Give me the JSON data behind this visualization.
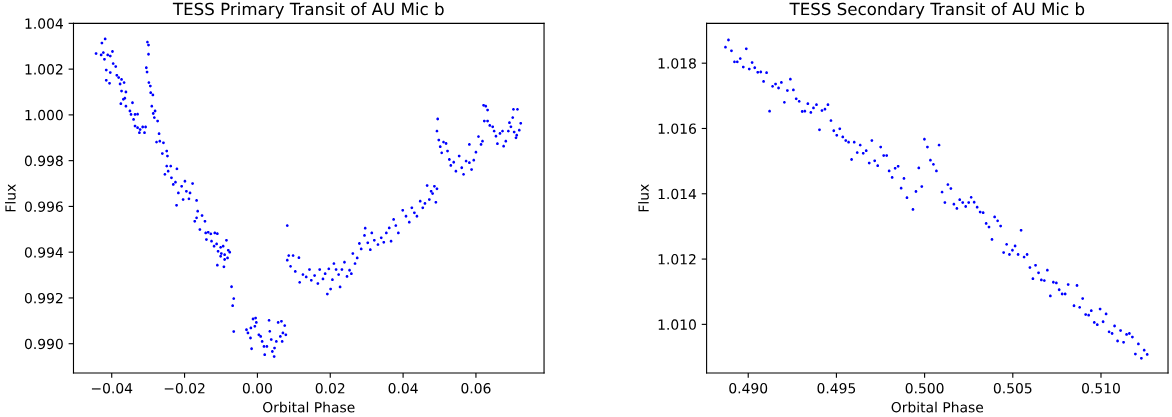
{
  "chart_data": [
    {
      "type": "scatter",
      "title": "TESS Primary Transit of AU Mic b",
      "xlabel": "Orbital Phase",
      "ylabel": "Flux",
      "grid": false,
      "legend": false,
      "xlim": [
        -0.0505,
        0.0787
      ],
      "ylim": [
        0.98872,
        1.004
      ],
      "xticks": [
        {
          "value": -0.04,
          "label": "−0.04"
        },
        {
          "value": -0.02,
          "label": "−0.02"
        },
        {
          "value": 0.0,
          "label": "0.00"
        },
        {
          "value": 0.02,
          "label": "0.02"
        },
        {
          "value": 0.04,
          "label": "0.04"
        },
        {
          "value": 0.06,
          "label": "0.06"
        }
      ],
      "yticks": [
        {
          "value": 0.99,
          "label": "0.990"
        },
        {
          "value": 0.992,
          "label": "0.992"
        },
        {
          "value": 0.994,
          "label": "0.994"
        },
        {
          "value": 0.996,
          "label": "0.996"
        },
        {
          "value": 0.998,
          "label": "0.998"
        },
        {
          "value": 1.0,
          "label": "1.000"
        },
        {
          "value": 1.002,
          "label": "1.002"
        },
        {
          "value": 1.004,
          "label": "1.004"
        }
      ],
      "series": [
        {
          "color": "#0000ff",
          "x": [
            -0.0443,
            -0.0427,
            -0.0418,
            -0.0429,
            -0.0423,
            -0.042,
            -0.0411,
            -0.0404,
            -0.0398,
            -0.0396,
            -0.0415,
            -0.0404,
            -0.0415,
            -0.0406,
            -0.0389,
            -0.0386,
            -0.0381,
            -0.0373,
            -0.0366,
            -0.0377,
            -0.0373,
            -0.0361,
            -0.0368,
            -0.0364,
            -0.0375,
            -0.0361,
            -0.035,
            -0.0343,
            -0.0347,
            -0.0336,
            -0.0329,
            -0.034,
            -0.0336,
            -0.0329,
            -0.0322,
            -0.0315,
            -0.0324,
            -0.031,
            -0.0307,
            -0.0302,
            -0.0299,
            -0.0299,
            -0.0305,
            -0.0303,
            -0.0298,
            -0.0294,
            -0.0293,
            -0.0287,
            -0.029,
            -0.0286,
            -0.0281,
            -0.0283,
            -0.0274,
            -0.027,
            -0.0277,
            -0.0268,
            -0.0258,
            -0.0261,
            -0.0249,
            -0.0247,
            -0.0249,
            -0.0238,
            -0.0245,
            -0.0221,
            -0.0254,
            -0.0236,
            -0.0231,
            -0.0225,
            -0.0217,
            -0.0208,
            -0.0199,
            -0.0195,
            -0.0185,
            -0.0178,
            -0.0204,
            -0.0222,
            -0.0188,
            -0.0167,
            -0.0164,
            -0.0167,
            -0.0172,
            -0.0158,
            -0.0152,
            -0.0144,
            -0.0142,
            -0.0135,
            -0.014,
            -0.0128,
            -0.0117,
            -0.011,
            -0.0126,
            -0.0119,
            -0.0112,
            -0.0108,
            -0.0101,
            -0.0094,
            -0.0085,
            -0.0099,
            -0.009,
            -0.008,
            -0.0076,
            -0.0082,
            -0.009,
            -0.011,
            -0.0092,
            -0.0101,
            -0.0071,
            -0.0065,
            -0.0068,
            -0.0065,
            -0.003,
            -0.0026,
            -0.0018,
            -0.0012,
            -0.0005,
            -0.0003,
            -0.0007,
            -0.0016,
            -0.0019,
            0.0004,
            0.0009,
            0.0013,
            0.0018,
            0.002,
            0.0026,
            0.0032,
            0.0034,
            0.0038,
            0.0041,
            0.0046,
            0.0047,
            0.0052,
            0.0057,
            0.0063,
            0.0066,
            0.007,
            0.0075,
            0.0078,
            0.0068,
            0.0082,
            0.0082,
            0.0086,
            0.0098,
            0.0091,
            0.0114,
            0.0104,
            0.0116,
            0.0125,
            0.0134,
            0.0143,
            0.0148,
            0.0157,
            0.0166,
            0.0171,
            0.018,
            0.0186,
            0.0192,
            0.0196,
            0.0201,
            0.0206,
            0.021,
            0.0216,
            0.0223,
            0.0227,
            0.0232,
            0.0239,
            0.0246,
            0.0253,
            0.0258,
            0.0262,
            0.0268,
            0.0274,
            0.028,
            0.0285,
            0.0296,
            0.0294,
            0.0303,
            0.0314,
            0.031,
            0.0321,
            0.0331,
            0.034,
            0.0347,
            0.0354,
            0.0362,
            0.0367,
            0.0374,
            0.038,
            0.0387,
            0.0399,
            0.0408,
            0.0417,
            0.0424,
            0.0431,
            0.0438,
            0.0447,
            0.0454,
            0.046,
            0.0466,
            0.0472,
            0.0477,
            0.0481,
            0.0486,
            0.049,
            0.0493,
            0.0495,
            0.0493,
            0.0498,
            0.0502,
            0.0506,
            0.0511,
            0.0518,
            0.0522,
            0.0527,
            0.0531,
            0.0539,
            0.0545,
            0.0554,
            0.0561,
            0.0566,
            0.0573,
            0.0582,
            0.0582,
            0.0588,
            0.0594,
            0.06,
            0.0607,
            0.0614,
            0.0618,
            0.0621,
            0.0627,
            0.0632,
            0.0623,
            0.0632,
            0.0638,
            0.0646,
            0.065,
            0.0655,
            0.0659,
            0.0666,
            0.0673,
            0.0676,
            0.0682,
            0.0689,
            0.0692,
            0.0696,
            0.0701,
            0.0705,
            0.071,
            0.0714,
            0.0703,
            0.0719,
            0.0723,
            0.0712
          ],
          "values": [
            1.00268,
            1.00314,
            1.00332,
            1.00262,
            1.00272,
            1.00243,
            1.00262,
            1.00257,
            1.00277,
            1.00224,
            1.00196,
            1.00185,
            1.00151,
            1.00138,
            1.00211,
            1.00173,
            1.00163,
            1.00155,
            1.00141,
            1.00135,
            1.00104,
            1.001,
            1.00068,
            1.00073,
            1.00049,
            1.00038,
            1.00017,
            1.00053,
            1.00002,
            1.00002,
            1.00003,
            0.9998,
            0.99951,
            0.99944,
            0.99936,
            0.99947,
            0.99922,
            0.99922,
            0.99947,
            1.00318,
            1.00305,
            1.00265,
            1.00206,
            1.00187,
            1.00141,
            1.00126,
            1.00097,
            1.00087,
            1.00038,
            1.00006,
            1.00017,
            0.99988,
            0.99973,
            0.99918,
            0.99881,
            0.99885,
            0.99878,
            0.99831,
            0.99842,
            0.9982,
            0.99776,
            0.99776,
            0.99754,
            0.99764,
            0.9974,
            0.99725,
            0.99696,
            0.99706,
            0.99659,
            0.99688,
            0.9971,
            0.99666,
            0.99659,
            0.997,
            0.9963,
            0.99605,
            0.99633,
            0.99626,
            0.99579,
            0.9955,
            0.99535,
            0.99499,
            0.9956,
            0.99535,
            0.99484,
            0.99487,
            0.99455,
            0.9948,
            0.99484,
            0.99481,
            0.99448,
            0.99426,
            0.99436,
            0.99404,
            0.99421,
            0.99426,
            0.99452,
            0.99394,
            0.99389,
            0.99408,
            0.994,
            0.99375,
            0.99368,
            0.99343,
            0.99336,
            0.99382,
            0.99249,
            0.99197,
            0.99166,
            0.99053,
            0.99061,
            0.99047,
            0.99069,
            0.99108,
            0.99112,
            0.99093,
            0.99076,
            0.98978,
            0.99025,
            0.99039,
            0.99032,
            0.9901,
            0.98988,
            0.98952,
            0.98988,
            0.99102,
            0.99054,
            0.99018,
            0.98966,
            0.98944,
            0.98981,
            0.9901,
            0.99093,
            0.99032,
            0.99098,
            0.99047,
            0.99079,
            0.99039,
            0.9901,
            0.99516,
            0.99365,
            0.99385,
            0.99385,
            0.99338,
            0.99376,
            0.99316,
            0.99268,
            0.99302,
            0.99292,
            0.99324,
            0.99277,
            0.99298,
            0.99263,
            0.99324,
            0.99283,
            0.99306,
            0.99217,
            0.99327,
            0.99239,
            0.9928,
            0.9935,
            0.99324,
            0.99302,
            0.99248,
            0.99324,
            0.99356,
            0.99294,
            0.99321,
            0.99306,
            0.99394,
            0.9935,
            0.99375,
            0.99438,
            0.99414,
            0.99505,
            0.99473,
            0.99441,
            0.99484,
            0.99411,
            0.99452,
            0.99433,
            0.99463,
            0.99443,
            0.99484,
            0.99506,
            0.99448,
            0.99543,
            0.99516,
            0.99484,
            0.99583,
            0.99557,
            0.99531,
            0.99594,
            0.99572,
            0.99557,
            0.99623,
            0.99594,
            0.99613,
            0.99691,
            0.9963,
            0.99666,
            0.99656,
            0.99688,
            0.99618,
            0.99677,
            0.99982,
            0.99929,
            0.9989,
            0.99861,
            0.99834,
            0.99881,
            0.99875,
            0.99842,
            0.99805,
            0.99779,
            0.99793,
            0.99754,
            0.9982,
            0.99769,
            0.9974,
            0.99798,
            0.99871,
            0.99791,
            0.99761,
            0.99802,
            0.99837,
            0.99905,
            0.99871,
            0.99885,
            1.00042,
            1.00038,
            1.00021,
            0.99973,
            0.99973,
            0.99954,
            0.99948,
            0.99929,
            0.99907,
            0.99874,
            0.99919,
            0.99929,
            0.99863,
            0.99885,
            0.99929,
            0.99966,
            0.99948,
            0.99988,
            0.99925,
            0.999,
            1.00024,
            1.00024,
            0.99933,
            0.99963,
            0.99911
          ]
        }
      ]
    },
    {
      "type": "scatter",
      "title": "TESS Secondary Transit of AU Mic b",
      "xlabel": "Orbital Phase",
      "ylabel": "Flux",
      "grid": false,
      "legend": false,
      "xlim": [
        0.48764,
        0.5138
      ],
      "ylim": [
        1.00851,
        1.01922
      ],
      "xticks": [
        {
          "value": 0.49,
          "label": "0.490"
        },
        {
          "value": 0.495,
          "label": "0.495"
        },
        {
          "value": 0.5,
          "label": "0.500"
        },
        {
          "value": 0.505,
          "label": "0.505"
        },
        {
          "value": 0.51,
          "label": "0.510"
        }
      ],
      "yticks": [
        {
          "value": 1.01,
          "label": "1.010"
        },
        {
          "value": 1.012,
          "label": "1.012"
        },
        {
          "value": 1.014,
          "label": "1.014"
        },
        {
          "value": 1.016,
          "label": "1.016"
        },
        {
          "value": 1.018,
          "label": "1.018"
        }
      ],
      "series": [
        {
          "color": "#0000ff",
          "x": [
            0.48871,
            0.48888,
            0.48905,
            0.48922,
            0.48938,
            0.48955,
            0.48972,
            0.48989,
            0.49006,
            0.49022,
            0.49037,
            0.49054,
            0.49071,
            0.49087,
            0.49104,
            0.49121,
            0.49138,
            0.49155,
            0.49172,
            0.49188,
            0.49205,
            0.49222,
            0.49239,
            0.49256,
            0.49272,
            0.49289,
            0.49306,
            0.49321,
            0.49338,
            0.49355,
            0.4937,
            0.49387,
            0.49404,
            0.49418,
            0.49435,
            0.49452,
            0.49469,
            0.49485,
            0.49502,
            0.49519,
            0.49536,
            0.49553,
            0.49569,
            0.49586,
            0.49601,
            0.49618,
            0.49635,
            0.49652,
            0.49669,
            0.49686,
            0.49701,
            0.49717,
            0.49734,
            0.49751,
            0.49768,
            0.49785,
            0.49799,
            0.49816,
            0.49833,
            0.4985,
            0.49867,
            0.49883,
            0.499,
            0.49934,
            0.49951,
            0.49967,
            0.49984,
            0.49999,
            0.50016,
            0.50033,
            0.5005,
            0.50067,
            0.50082,
            0.50099,
            0.50115,
            0.50132,
            0.50149,
            0.50166,
            0.50183,
            0.50199,
            0.50216,
            0.50233,
            0.5025,
            0.50264,
            0.50281,
            0.50298,
            0.50315,
            0.50332,
            0.50349,
            0.50365,
            0.50382,
            0.50397,
            0.50414,
            0.50431,
            0.50448,
            0.50465,
            0.50481,
            0.50498,
            0.50513,
            0.5053,
            0.50547,
            0.50564,
            0.50581,
            0.50597,
            0.50614,
            0.50629,
            0.50646,
            0.50662,
            0.50679,
            0.50696,
            0.50713,
            0.5073,
            0.50747,
            0.50763,
            0.5078,
            0.50797,
            0.50814,
            0.50847,
            0.50864,
            0.50879,
            0.50896,
            0.50913,
            0.5093,
            0.50945,
            0.50962,
            0.50979,
            0.50995,
            0.51012,
            0.51029,
            0.51046,
            0.51063,
            0.51077,
            0.51094,
            0.51111,
            0.51128,
            0.51145,
            0.51161,
            0.51178,
            0.51195,
            0.51212,
            0.51229,
            0.51245,
            0.51262
          ],
          "values": [
            1.01849,
            1.01871,
            1.01838,
            1.01804,
            1.01804,
            1.01814,
            1.01788,
            1.01844,
            1.01782,
            1.01802,
            1.01786,
            1.01772,
            1.01773,
            1.01744,
            1.01771,
            1.01653,
            1.01729,
            1.01736,
            1.01724,
            1.01741,
            1.0168,
            1.01716,
            1.01751,
            1.01718,
            1.01691,
            1.01683,
            1.01652,
            1.01653,
            1.01676,
            1.01649,
            1.01663,
            1.01673,
            1.01596,
            1.01655,
            1.01659,
            1.01673,
            1.01624,
            1.01593,
            1.01579,
            1.01599,
            1.01574,
            1.01563,
            1.01558,
            1.01505,
            1.01558,
            1.01526,
            1.01549,
            1.01524,
            1.01532,
            1.01494,
            1.01563,
            1.01501,
            1.01486,
            1.01543,
            1.01517,
            1.01517,
            1.0147,
            1.0145,
            1.01478,
            1.01484,
            1.01417,
            1.01447,
            1.01388,
            1.01352,
            1.01407,
            1.01479,
            1.01422,
            1.01567,
            1.01543,
            1.01503,
            1.0149,
            1.0147,
            1.01549,
            1.01405,
            1.01373,
            1.01428,
            1.01416,
            1.01368,
            1.01355,
            1.01382,
            1.01373,
            1.01361,
            1.01373,
            1.01389,
            1.01374,
            1.01359,
            1.01344,
            1.01342,
            1.01309,
            1.01298,
            1.0126,
            1.01329,
            1.01317,
            1.01301,
            1.0122,
            1.01245,
            1.01214,
            1.01227,
            1.0124,
            1.01214,
            1.01288,
            1.01206,
            1.01214,
            1.01174,
            1.0114,
            1.01181,
            1.01158,
            1.01136,
            1.01134,
            1.01166,
            1.01087,
            1.01129,
            1.01127,
            1.01106,
            1.01093,
            1.01093,
            1.01122,
            1.01057,
            1.01119,
            1.01052,
            1.01079,
            1.0103,
            1.01028,
            1.01042,
            1.01006,
            1.00999,
            1.01047,
            1.01008,
            1.01032,
            1.00977,
            1.00972,
            1.00995,
            1.00949,
            1.00981,
            1.00945,
            1.00969,
            1.00972,
            1.00961,
            1.00909,
            1.0094,
            1.00896,
            1.00921,
            1.00908
          ]
        }
      ]
    }
  ]
}
